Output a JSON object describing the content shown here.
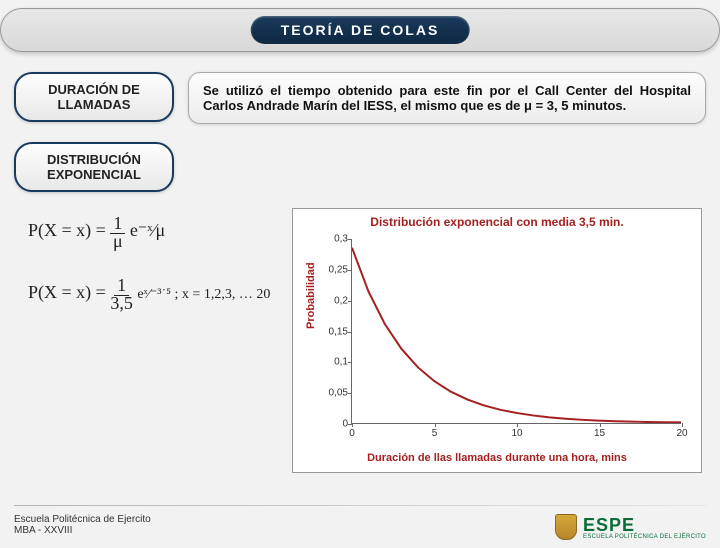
{
  "header": {
    "title": "TEORÍA DE COLAS"
  },
  "pills": {
    "duracion": "DURACIÓN DE\nLLAMADAS",
    "distribucion": "DISTRIBUCIÓN\nEXPONENCIAL"
  },
  "description": "Se utilizó el tiempo obtenido para este fin por el Call Center del Hospital Carlos Andrade Marín del IESS, el mismo que es de μ = 3, 5 minutos.",
  "formulas": {
    "f1_lhs": "P(X = x) =",
    "f1_mid": "1/μ",
    "f1_rhs": " e⁻ˣ⁄μ",
    "f2_lhs": "P(X = x) =",
    "f2_mid": "1/3,5",
    "f2_rhs": " eˣ⁄⁻³˙⁵ ; x = 1,2,3, … 20"
  },
  "chart": {
    "type": "line",
    "title": "Distribución exponencial con media 3,5 min.",
    "xlabel": "Duración de llas llamadas durante una hora, mins",
    "ylabel": "Probabilidad",
    "xlim": [
      0,
      20
    ],
    "ylim": [
      0,
      0.3
    ],
    "xticks": [
      0,
      5,
      10,
      15,
      20
    ],
    "yticks": [
      0,
      0.05,
      0.1,
      0.15,
      0.2,
      0.25,
      0.3
    ],
    "line_color": "#a52020",
    "line_width": 2,
    "background_color": "#ffffff",
    "axis_color": "#666666",
    "x_values": [
      0,
      1,
      2,
      3,
      4,
      5,
      6,
      7,
      8,
      9,
      10,
      11,
      12,
      13,
      14,
      15,
      16,
      17,
      18,
      19,
      20
    ],
    "y_values": [
      0.2857,
      0.2146,
      0.1612,
      0.1211,
      0.0909,
      0.0683,
      0.0513,
      0.0385,
      0.0289,
      0.0217,
      0.0163,
      0.0123,
      0.0092,
      0.0069,
      0.0052,
      0.0039,
      0.0029,
      0.0022,
      0.0017,
      0.0012,
      0.0009
    ]
  },
  "footer": {
    "line1": "Escuela Politécnica de Ejercito",
    "line2": "MBA - XXVIII"
  },
  "logo": {
    "text": "ESPE",
    "sub": "ESCUELA POLITÉCNICA DEL EJÉRCITO"
  }
}
